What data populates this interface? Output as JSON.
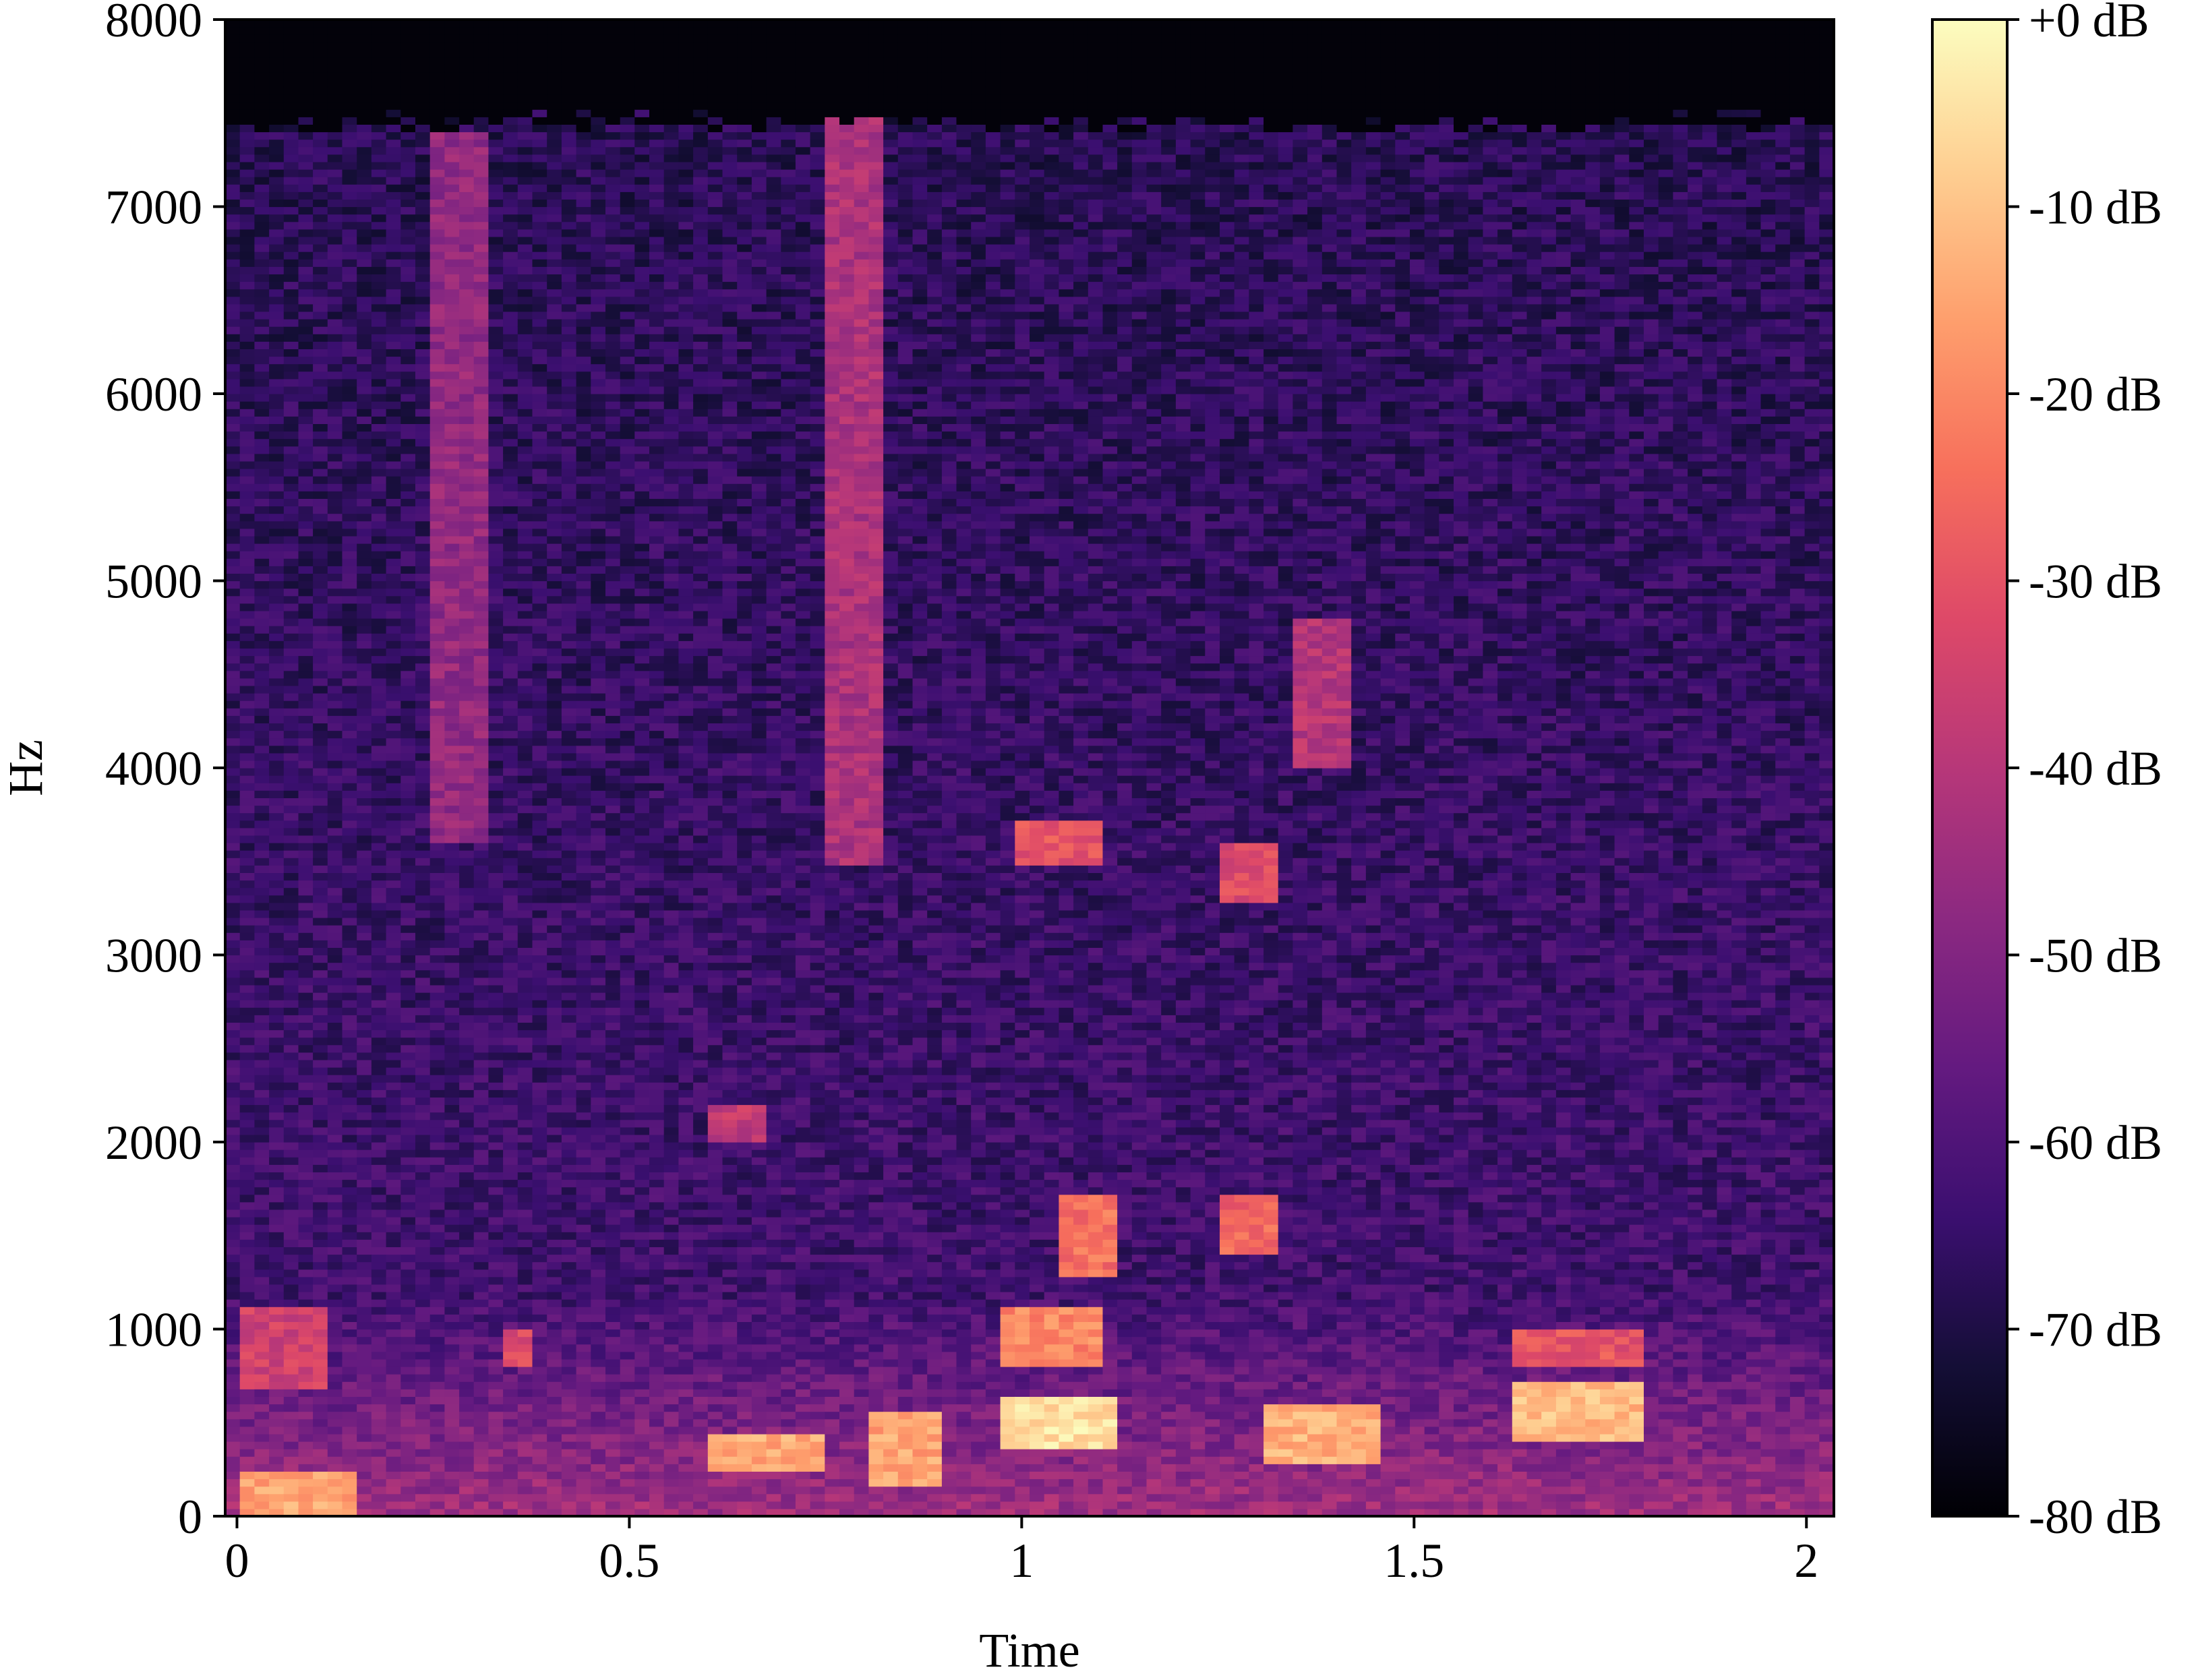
{
  "chart_data": {
    "type": "heatmap",
    "title": "",
    "xlabel": "Time",
    "ylabel": "Hz",
    "xlim": [
      -0.015,
      2.035
    ],
    "ylim": [
      0,
      8000
    ],
    "x_ticks": [
      {
        "value": 0,
        "label": "0"
      },
      {
        "value": 0.5,
        "label": "0.5"
      },
      {
        "value": 1,
        "label": "1"
      },
      {
        "value": 1.5,
        "label": "1.5"
      },
      {
        "value": 2,
        "label": "2"
      }
    ],
    "y_ticks": [
      {
        "value": 0,
        "label": "0"
      },
      {
        "value": 1000,
        "label": "1000"
      },
      {
        "value": 2000,
        "label": "2000"
      },
      {
        "value": 3000,
        "label": "3000"
      },
      {
        "value": 4000,
        "label": "4000"
      },
      {
        "value": 5000,
        "label": "5000"
      },
      {
        "value": 6000,
        "label": "6000"
      },
      {
        "value": 7000,
        "label": "7000"
      },
      {
        "value": 8000,
        "label": "8000"
      }
    ],
    "colorbar": {
      "colormap": "magma",
      "range": [
        -80,
        0
      ],
      "ticks": [
        {
          "value": 0,
          "label": "+0 dB"
        },
        {
          "value": -10,
          "label": "-10 dB"
        },
        {
          "value": -20,
          "label": "-20 dB"
        },
        {
          "value": -30,
          "label": "-30 dB"
        },
        {
          "value": -40,
          "label": "-40 dB"
        },
        {
          "value": -50,
          "label": "-50 dB"
        },
        {
          "value": -60,
          "label": "-60 dB"
        },
        {
          "value": -70,
          "label": "-70 dB"
        },
        {
          "value": -80,
          "label": "-80 dB"
        }
      ]
    },
    "cutoff_hz": 7450,
    "floor_db": -62,
    "energy_regions": [
      {
        "t": [
          0.0,
          0.15
        ],
        "f": [
          0,
          250
        ],
        "db": -15
      },
      {
        "t": [
          0.0,
          0.12
        ],
        "f": [
          700,
          1100
        ],
        "db": -35
      },
      {
        "t": [
          0.25,
          0.32
        ],
        "f": [
          3600,
          7400
        ],
        "db": -47
      },
      {
        "t": [
          0.33,
          0.38
        ],
        "f": [
          800,
          1000
        ],
        "db": -33
      },
      {
        "t": [
          0.6,
          0.75
        ],
        "f": [
          250,
          450
        ],
        "db": -14
      },
      {
        "t": [
          0.6,
          0.67
        ],
        "f": [
          2000,
          2200
        ],
        "db": -38
      },
      {
        "t": [
          0.75,
          0.82
        ],
        "f": [
          3500,
          7500
        ],
        "db": -42
      },
      {
        "t": [
          0.8,
          0.9
        ],
        "f": [
          150,
          550
        ],
        "db": -15
      },
      {
        "t": [
          0.97,
          1.12
        ],
        "f": [
          350,
          650
        ],
        "db": -5
      },
      {
        "t": [
          0.97,
          1.1
        ],
        "f": [
          800,
          1100
        ],
        "db": -20
      },
      {
        "t": [
          1.05,
          1.12
        ],
        "f": [
          1300,
          1700
        ],
        "db": -24
      },
      {
        "t": [
          1.0,
          1.1
        ],
        "f": [
          3500,
          3700
        ],
        "db": -30
      },
      {
        "t": [
          1.25,
          1.32
        ],
        "f": [
          1400,
          1700
        ],
        "db": -26
      },
      {
        "t": [
          1.25,
          1.32
        ],
        "f": [
          3300,
          3600
        ],
        "db": -32
      },
      {
        "t": [
          1.3,
          1.45
        ],
        "f": [
          300,
          600
        ],
        "db": -13
      },
      {
        "t": [
          1.35,
          1.42
        ],
        "f": [
          4000,
          4800
        ],
        "db": -40
      },
      {
        "t": [
          1.62,
          1.8
        ],
        "f": [
          400,
          700
        ],
        "db": -11
      },
      {
        "t": [
          1.62,
          1.8
        ],
        "f": [
          800,
          1000
        ],
        "db": -30
      }
    ]
  }
}
